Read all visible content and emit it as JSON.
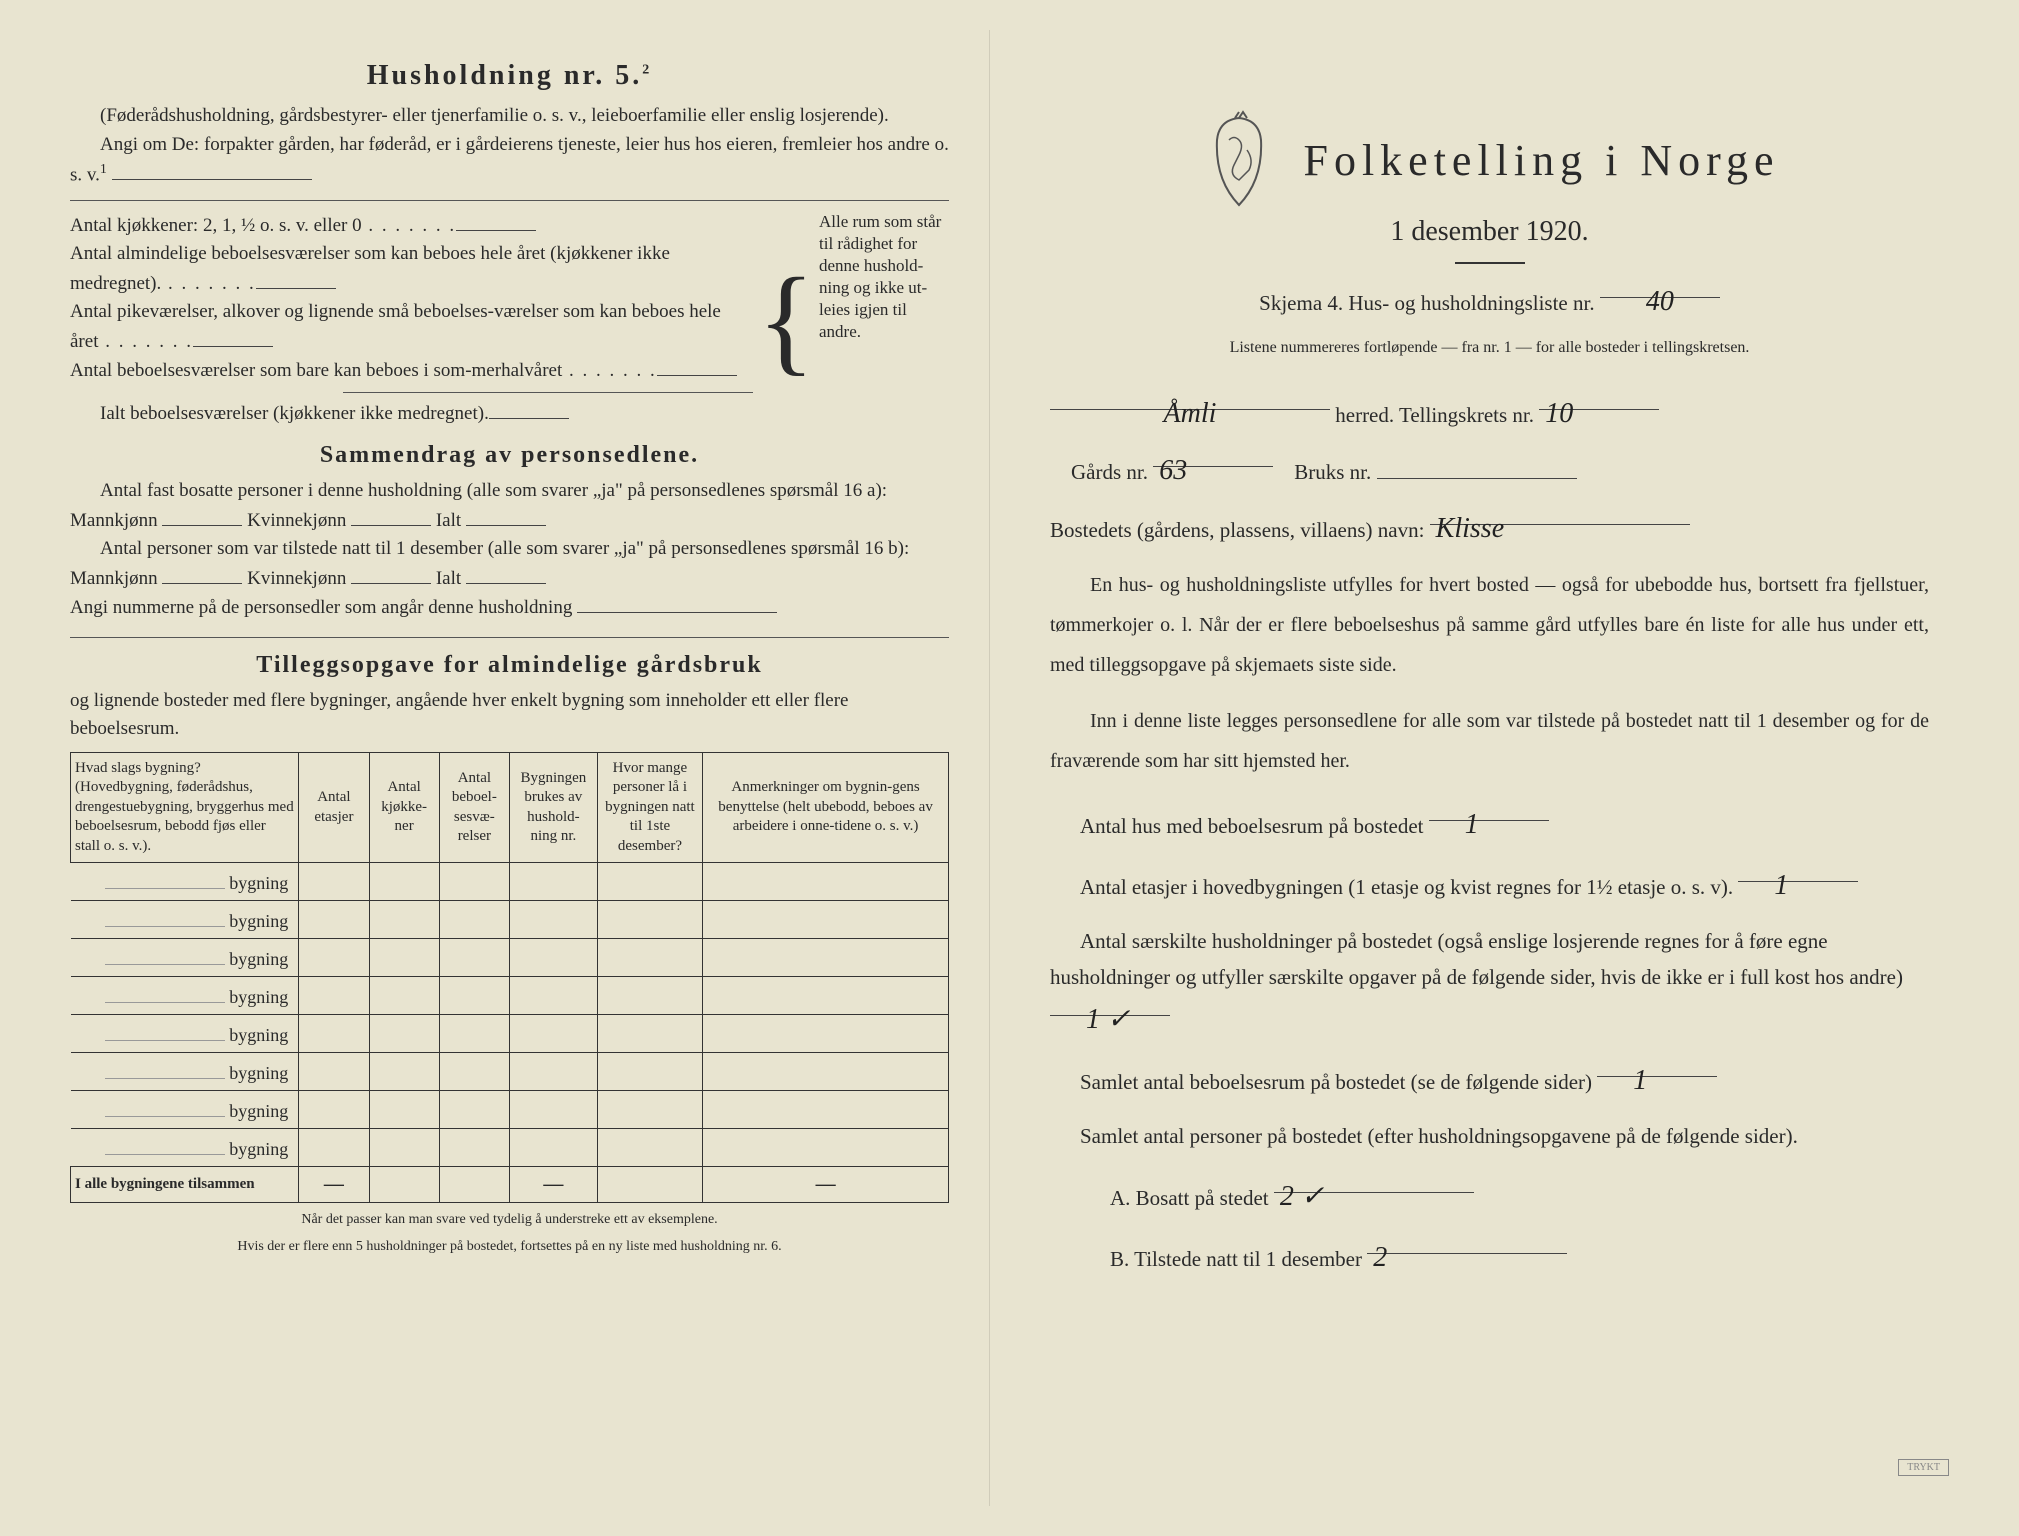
{
  "left": {
    "household_heading": "Husholdning nr. 5.",
    "household_sup": "2",
    "intro1": "(Føderådshusholdning, gårdsbestyrer- eller tjenerfamilie o. s. v., leieboerfamilie eller enslig losjerende).",
    "intro2_label": "Angi om De:",
    "intro2_text": "forpakter gården, har føderåd, er i gårdeierens tjeneste, leier hus hos eieren, fremleier hos andre o. s. v.",
    "intro2_sup": "1",
    "kitchens": "Antal kjøkkener: 2, 1, ½ o. s. v. eller 0",
    "rooms1": "Antal almindelige beboelsesværelser som kan beboes hele året (kjøkkener ikke medregnet).",
    "rooms2": "Antal pikeværelser, alkover og lignende små beboelses-værelser som kan beboes hele året",
    "rooms3": "Antal beboelsesværelser som bare kan beboes i som-merhalvåret",
    "rooms_total": "Ialt beboelsesværelser  (kjøkkener ikke medregnet).",
    "brace_note": "Alle rum som står til rådighet for denne hushold-ning og ikke ut-leies igjen til andre.",
    "summary_heading": "Sammendrag av personsedlene.",
    "sum1a": "Antal fast bosatte personer i denne husholdning (alle som svarer „ja\" på personsedlenes spørsmål 16 a): Mannkjønn",
    "sum_kvinne": "Kvinnekjønn",
    "sum_ialt": "Ialt",
    "sum2a": "Antal personer som var tilstede natt til 1 desember (alle som svarer „ja\" på personsedlenes spørsmål 16 b): Mannkjønn",
    "sum3": "Angi nummerne på de personsedler som angår denne husholdning",
    "tillegg_heading": "Tilleggsopgave for almindelige gårdsbruk",
    "tillegg_intro": "og lignende bosteder med flere bygninger, angående hver enkelt bygning som inneholder ett eller flere beboelsesrum.",
    "table": {
      "col1": "Hvad slags bygning?\n(Hovedbygning, føderådshus, drengestuebygning, bryggerhus med beboelsesrum, bebodd fjøs eller stall o. s. v.).",
      "col2": "Antal etasjer",
      "col3": "Antal kjøkke-ner",
      "col4": "Antal beboel-sesvæ-relser",
      "col5": "Bygningen brukes av hushold-ning nr.",
      "col6": "Hvor mange personer lå i bygningen natt til 1ste desember?",
      "col7": "Anmerkninger om bygnin-gens benyttelse (helt ubebodd, beboes av arbeidere i onne-tidene o. s. v.)",
      "row_label": "bygning",
      "sum_row": "I alle bygningene tilsammen",
      "dash": "—"
    },
    "footnote1": "Når det passer kan man svare ved tydelig å understreke ett av eksemplene.",
    "footnote2": "Hvis der er flere enn 5 husholdninger på bostedet, fortsettes på en ny liste med husholdning nr. 6."
  },
  "right": {
    "title": "Folketelling i Norge",
    "subtitle": "1 desember 1920.",
    "skjema": "Skjema 4.   Hus- og husholdningsliste nr.",
    "skjema_val": "40",
    "listene": "Listene nummereres fortløpende — fra nr. 1 — for alle bosteder i tellingskretsen.",
    "herred_val": "Åmli",
    "herred_label": "herred.   Tellingskrets nr.",
    "krets_val": "10",
    "gards_label": "Gårds nr.",
    "gards_val": "63",
    "bruks_label": "Bruks nr.",
    "bruks_val": "",
    "bosted_label": "Bostedets (gårdens, plassens, villaens) navn:",
    "bosted_val": "Klisse",
    "para1": "En hus- og husholdningsliste utfylles for hvert bosted — også for ubebodde hus, bortsett fra fjellstuer, tømmerkojer o. l.  Når der er flere beboelseshus på samme gård utfylles bare én liste for alle hus under ett, med tilleggsopgave på skjemaets siste side.",
    "para2": "Inn i denne liste legges personsedlene for alle som var tilstede på bostedet natt til 1 desember og for de fraværende som har sitt hjemsted her.",
    "q1": "Antal hus med beboelsesrum på bostedet",
    "q1_val": "1",
    "q2a": "Antal etasjer i hovedbygningen (1 etasje og kvist regnes for 1½ etasje o. s. v).",
    "q2_val": "1",
    "q3": "Antal særskilte husholdninger på bostedet (også enslige losjerende regnes for å føre egne husholdninger og utfyller særskilte opgaver på de følgende sider, hvis de ikke er i full kost hos andre)",
    "q3_val": "1 ✓",
    "q4": "Samlet antal beboelsesrum på bostedet (se de følgende sider)",
    "q4_val": "1",
    "q5": "Samlet antal personer på bostedet (efter husholdningsopgavene på de følgende sider).",
    "qA": "A.  Bosatt på stedet",
    "qA_val": "2 ✓",
    "qB": "B.  Tilstede natt til 1 desember",
    "qB_val": "2",
    "stamp": "TRYKT"
  }
}
